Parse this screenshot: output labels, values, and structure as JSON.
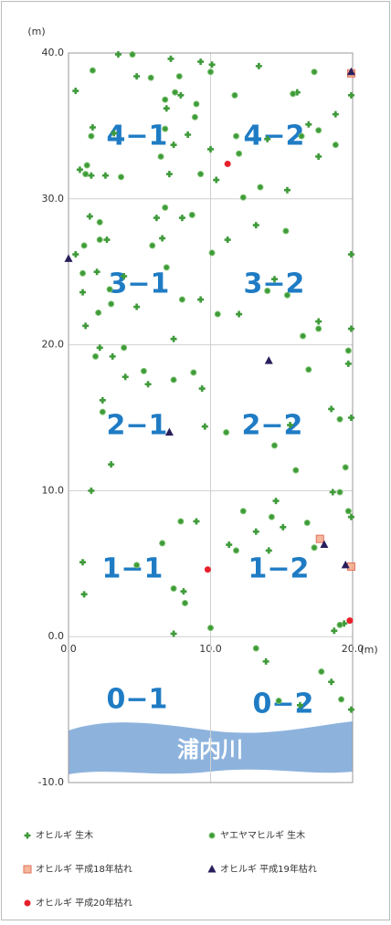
{
  "chart_data": {
    "type": "scatter",
    "y_label": "(m)",
    "x_label": "(m)",
    "xlim": [
      0,
      20
    ],
    "ylim": [
      -10,
      40
    ],
    "xticks": [
      {
        "value": 0,
        "label": "0.0"
      },
      {
        "value": 10,
        "label": "10.0"
      },
      {
        "value": 20,
        "label": "20.0"
      }
    ],
    "yticks": [
      {
        "value": -10,
        "label": "-10.0"
      },
      {
        "value": 0,
        "label": "0.0"
      },
      {
        "value": 10,
        "label": "10.0"
      },
      {
        "value": 20,
        "label": "20.0"
      },
      {
        "value": 30,
        "label": "30.0"
      },
      {
        "value": 40,
        "label": "40.0"
      }
    ],
    "grid": true,
    "series": [
      {
        "name": "オヒルギ 生木",
        "color": "#3f9a3a",
        "marker": "plus",
        "x": [
          0.5,
          3.5,
          4.8,
          7.2,
          9.3,
          10.1,
          13.4,
          16.1,
          19.9,
          6.9,
          7.9,
          1.7,
          3.2,
          8.4,
          7.4,
          10,
          14,
          16.9,
          18.8,
          17.6,
          0.8,
          1.6,
          2.6,
          7.1,
          10.4,
          15.4,
          1.5,
          6.2,
          8,
          13.2,
          11.2,
          2.7,
          0.5,
          6.6,
          19.9,
          2,
          3.9,
          1,
          4.8,
          9.3,
          12,
          14.5,
          1.2,
          2.2,
          3.1,
          7.4,
          17.6,
          19.9,
          19.7,
          4,
          5.6,
          9.4,
          2.4,
          9.6,
          15.6,
          18.5,
          19.9,
          3,
          1.6,
          18.6,
          14.6,
          19.9,
          9,
          11.3,
          13.2,
          15.1,
          14.1,
          1,
          1.1,
          8.1,
          7.4,
          18.7,
          19.4,
          13.9,
          18.5,
          19.9,
          16.3
        ],
        "values": [
          37.4,
          39.9,
          38.4,
          39.6,
          39.4,
          39.2,
          39.1,
          37.3,
          37.1,
          36.2,
          37.1,
          34.9,
          34.5,
          34.4,
          33.7,
          33.4,
          34.1,
          35.1,
          35.8,
          32.9,
          32,
          31.6,
          31.6,
          31.7,
          31.3,
          30.6,
          28.8,
          28.7,
          28.7,
          28.2,
          27.2,
          27.2,
          26.2,
          27.3,
          26.2,
          25,
          24.7,
          23.6,
          22.6,
          23.1,
          22.1,
          24.5,
          21.3,
          19.8,
          19.2,
          20.4,
          21.6,
          21.1,
          18.7,
          17.8,
          17.3,
          17,
          16.2,
          14.4,
          14.5,
          15.6,
          15,
          11.8,
          10,
          9.9,
          9.3,
          8.2,
          7.9,
          6.3,
          7.2,
          7.5,
          5.9,
          5.1,
          2.9,
          3.1,
          0.2,
          0.4,
          0.9,
          -1.7,
          -3.1,
          -5,
          -4.7
        ]
      },
      {
        "name": "ヤエヤマヒルギ 生木",
        "color": "#3f9a3a",
        "marker": "circle",
        "x": [
          1.7,
          4.5,
          5.8,
          7.8,
          10,
          11.7,
          15.8,
          17.3,
          6.8,
          7.5,
          9,
          1.6,
          6.8,
          8.9,
          6.5,
          11.8,
          16.4,
          17.6,
          18.8,
          12,
          1.3,
          1.2,
          3.7,
          9.3,
          13.5,
          12.3,
          2.2,
          6.8,
          8.7,
          15.3,
          2.2,
          1.1,
          5.9,
          10.1,
          1,
          2.9,
          6.9,
          3,
          8,
          10.5,
          14,
          15.4,
          2.1,
          1.9,
          3.9,
          16.5,
          17.6,
          19.7,
          16.9,
          5.3,
          7.4,
          8.8,
          2.4,
          11.1,
          14.5,
          19.1,
          16,
          19.5,
          19.1,
          12.3,
          19.7,
          7.9,
          6.6,
          11.8,
          14.3,
          16.8,
          17.3,
          4.8,
          7.4,
          8.2,
          10,
          19.1,
          13.2,
          17.8,
          19.2,
          14.8
        ],
        "values": [
          38.8,
          39.9,
          38.3,
          38.4,
          38.7,
          37.1,
          37.2,
          38.7,
          36.8,
          37.3,
          36.5,
          34.3,
          34.8,
          35.6,
          32.9,
          34.3,
          34.3,
          34.7,
          33.7,
          33.1,
          32.3,
          31.7,
          31.5,
          31.7,
          30.8,
          30.1,
          28.4,
          29.4,
          28.9,
          27.8,
          27.2,
          26.8,
          26.8,
          26.3,
          24.9,
          23.8,
          25.3,
          22.8,
          23.1,
          22.1,
          23.7,
          23.4,
          22.2,
          19.2,
          19.8,
          20.6,
          21.1,
          19.6,
          18.3,
          18.2,
          17.6,
          18.1,
          15.4,
          14,
          13.1,
          14.9,
          11.4,
          11.6,
          9.9,
          8.6,
          8.6,
          7.9,
          6.4,
          5.9,
          8.2,
          7.8,
          6.1,
          4.9,
          3.3,
          2.3,
          0.6,
          0.8,
          -0.8,
          -2.4,
          -4.3,
          -4.4
        ]
      },
      {
        "name": "オヒルギ 平成18年枯れ",
        "color": "#f4a582",
        "marker": "square",
        "x": [
          19.9,
          17.7,
          19.9
        ],
        "values": [
          38.6,
          6.7,
          4.8
        ]
      },
      {
        "name": "オヒルギ 平成19年枯れ",
        "color": "#2a1f5c",
        "marker": "triangle",
        "x": [
          19.9,
          0,
          14.1,
          7.1,
          18,
          19.5
        ],
        "values": [
          38.7,
          25.9,
          18.9,
          14,
          6.3,
          4.9
        ]
      },
      {
        "name": "オヒルギ 平成20年枯れ",
        "color": "#e8202a",
        "marker": "dot",
        "x": [
          11.2,
          9.8,
          19.8
        ],
        "values": [
          32.4,
          4.6,
          1.1
        ]
      }
    ],
    "annotations": {
      "regions": [
        "4−1",
        "4−2",
        "3−1",
        "3−2",
        "2−1",
        "2−2",
        "1−1",
        "1−2",
        "0−1",
        "0−2"
      ],
      "river": "浦内川"
    }
  }
}
